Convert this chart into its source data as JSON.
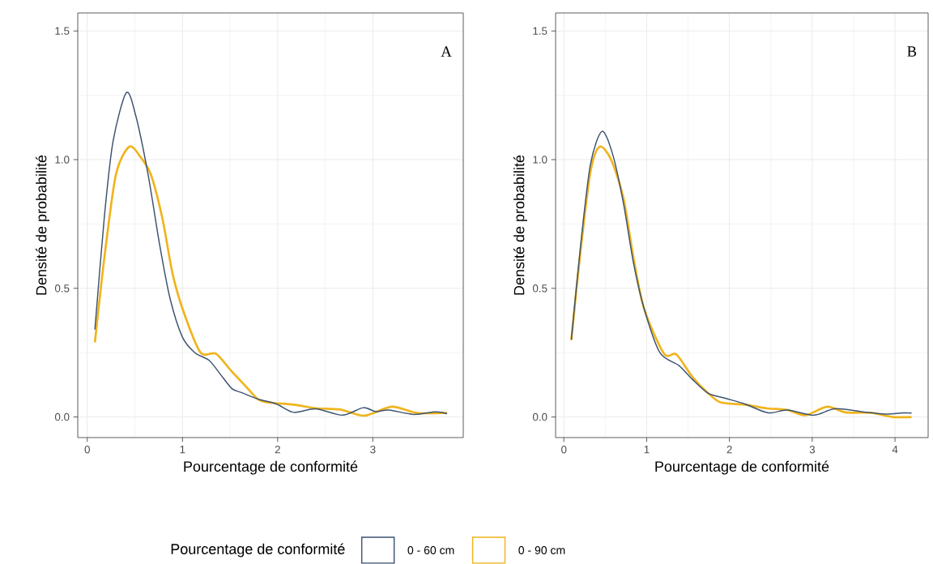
{
  "chart_data": [
    {
      "type": "line",
      "xlabel": "Pourcentage de conformité",
      "ylabel": "Densité de probabilité",
      "legend_title": "Pourcentage de conformité",
      "legend": "bottom",
      "grid": true,
      "annotations": [
        "A"
      ],
      "xlim": [
        -0.1,
        3.95
      ],
      "ylim": [
        -0.08,
        1.57
      ],
      "xticks": [
        0,
        1,
        2,
        3
      ],
      "yticks": [
        {
          "value": 0,
          "label": "0.0"
        },
        {
          "value": 0.5,
          "label": "0.5"
        },
        {
          "value": 1,
          "label": "1.0"
        },
        {
          "value": 1.5,
          "label": "1.5"
        }
      ],
      "series": [
        {
          "name": "0 - 60 cm",
          "color": "#3d5370",
          "x": [
            0.08,
            0.18,
            0.27,
            0.41,
            0.51,
            0.64,
            0.76,
            0.87,
            1.0,
            1.13,
            1.28,
            1.39,
            1.52,
            1.62,
            1.79,
            1.99,
            2.17,
            2.4,
            2.68,
            2.9,
            3.03,
            3.17,
            3.43,
            3.66,
            3.78
          ],
          "values": [
            0.34,
            0.78,
            1.07,
            1.26,
            1.17,
            0.94,
            0.67,
            0.46,
            0.31,
            0.25,
            0.22,
            0.17,
            0.11,
            0.095,
            0.07,
            0.05,
            0.018,
            0.032,
            0.007,
            0.036,
            0.021,
            0.027,
            0.01,
            0.02,
            0.013
          ]
        },
        {
          "name": "0 - 90 cm",
          "color": "#f0b41c",
          "x": [
            0.08,
            0.18,
            0.3,
            0.44,
            0.56,
            0.67,
            0.79,
            0.9,
            1.02,
            1.19,
            1.35,
            1.51,
            1.65,
            1.79,
            1.91,
            2.17,
            2.4,
            2.66,
            2.91,
            3.2,
            3.46,
            3.78
          ],
          "values": [
            0.29,
            0.62,
            0.94,
            1.05,
            1.01,
            0.94,
            0.77,
            0.55,
            0.4,
            0.25,
            0.246,
            0.18,
            0.125,
            0.07,
            0.056,
            0.048,
            0.034,
            0.029,
            0.005,
            0.04,
            0.016,
            0.016
          ]
        }
      ]
    },
    {
      "type": "line",
      "xlabel": "Pourcentage de conformité",
      "ylabel": "Densité de probabilité",
      "grid": true,
      "annotations": [
        "B"
      ],
      "xlim": [
        -0.1,
        4.4
      ],
      "ylim": [
        -0.08,
        1.57
      ],
      "xticks": [
        0,
        1,
        2,
        3,
        4
      ],
      "yticks": [
        {
          "value": 0,
          "label": "0.0"
        },
        {
          "value": 0.5,
          "label": "0.5"
        },
        {
          "value": 1,
          "label": "1.0"
        },
        {
          "value": 1.5,
          "label": "1.5"
        }
      ],
      "series": [
        {
          "color": "#3d5370",
          "x": [
            0.09,
            0.2,
            0.32,
            0.46,
            0.59,
            0.72,
            0.84,
            0.97,
            1.16,
            1.39,
            1.55,
            1.74,
            1.96,
            2.19,
            2.47,
            2.7,
            3.02,
            3.27,
            3.59,
            3.88,
            4.1,
            4.2
          ],
          "values": [
            0.3,
            0.66,
            0.98,
            1.11,
            1.02,
            0.83,
            0.6,
            0.42,
            0.25,
            0.2,
            0.147,
            0.093,
            0.072,
            0.05,
            0.016,
            0.027,
            0.007,
            0.032,
            0.021,
            0.011,
            0.016,
            0.015
          ]
        },
        {
          "color": "#f0b41c",
          "x": [
            0.09,
            0.2,
            0.32,
            0.43,
            0.57,
            0.72,
            0.84,
            0.97,
            1.21,
            1.36,
            1.55,
            1.74,
            1.9,
            2.19,
            2.44,
            2.7,
            2.92,
            3.18,
            3.4,
            3.72,
            3.97,
            4.2
          ],
          "values": [
            0.3,
            0.64,
            0.95,
            1.05,
            1.0,
            0.85,
            0.62,
            0.42,
            0.246,
            0.243,
            0.157,
            0.093,
            0.056,
            0.048,
            0.034,
            0.027,
            0.007,
            0.04,
            0.018,
            0.016,
            0.0,
            0.0
          ]
        }
      ]
    }
  ]
}
